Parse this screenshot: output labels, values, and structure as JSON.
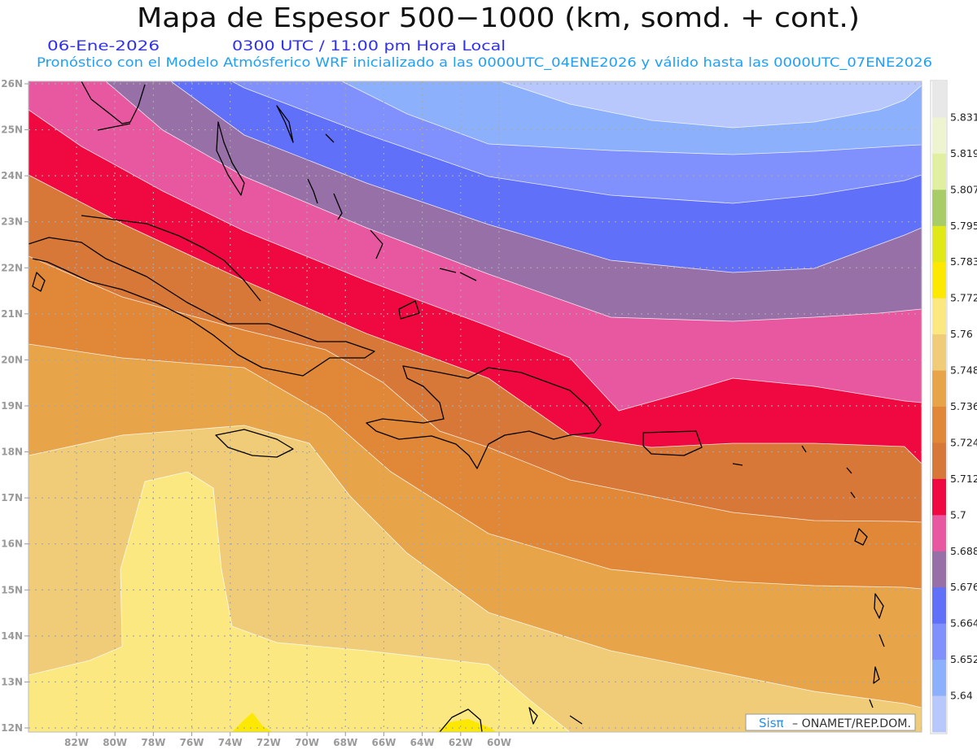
{
  "header": {
    "title": "Mapa de Espesor 500−1000 (km, somd. + cont.)",
    "date": "06-Ene-2026",
    "time": "0300 UTC / 11:00 pm Hora Local",
    "subtitle": "Pronóstico con el Modelo Atmósferico WRF inicializado a las 0000UTC_04ENE2026 y válido hasta las  0000UTC_07ENE2026"
  },
  "map": {
    "lat_labels": [
      "26N",
      "25N",
      "24N",
      "23N",
      "22N",
      "21N",
      "20N",
      "19N",
      "18N",
      "17N",
      "16N",
      "15N",
      "14N",
      "13N",
      "12N"
    ],
    "lon_labels": [
      "82W",
      "80W",
      "78W",
      "76W",
      "74W",
      "72W",
      "70W",
      "68W",
      "66W",
      "64W",
      "62W",
      "60W"
    ],
    "credit_brand": "Sisπ",
    "credit_text": "–  ONAMET/REP.DOM.",
    "credit_brand_color": "#1e90ff"
  },
  "colorbar": {
    "labels": [
      "5.831",
      "5.819",
      "5.807",
      "5.795",
      "5.783",
      "5.772",
      "5.76",
      "5.748",
      "5.736",
      "5.724",
      "5.712",
      "5.7",
      "5.688",
      "5.676",
      "5.664",
      "5.652",
      "5.64"
    ],
    "colors": [
      "#e8e8e8",
      "#eef4d0",
      "#e0f0a0",
      "#a8cc68",
      "#e0e818",
      "#fce800",
      "#fce880",
      "#f0cc78",
      "#e8a448",
      "#e08838",
      "#d87838",
      "#f00840",
      "#e858a0",
      "#9870a8",
      "#6070f8",
      "#8090fc",
      "#8cb0fc",
      "#b8c8fc"
    ]
  }
}
